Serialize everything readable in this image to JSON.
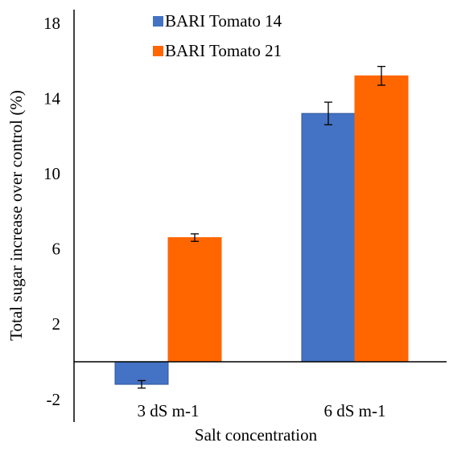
{
  "chart_data": {
    "type": "bar",
    "title": "",
    "xlabel": "Salt concentration",
    "ylabel": "Total sugar increase over control  (%)",
    "categories": [
      "3 dS m-1",
      "6 dS m-1"
    ],
    "series": [
      {
        "name": "BARI Tomato 14",
        "color": "#4472C4",
        "values": [
          -1.2,
          13.2
        ],
        "errors": [
          0.2,
          0.6
        ]
      },
      {
        "name": "BARI Tomato 21",
        "color": "#FF6600",
        "values": [
          6.6,
          15.2
        ],
        "errors": [
          0.2,
          0.5
        ]
      }
    ],
    "ylim": [
      -2,
      20
    ],
    "yticks": [
      "18",
      "14",
      "10",
      "6",
      "2",
      "-2"
    ],
    "ytick_values": [
      18,
      14,
      10,
      6,
      2,
      -2
    ],
    "grid": false,
    "legend_position": "top-left"
  }
}
